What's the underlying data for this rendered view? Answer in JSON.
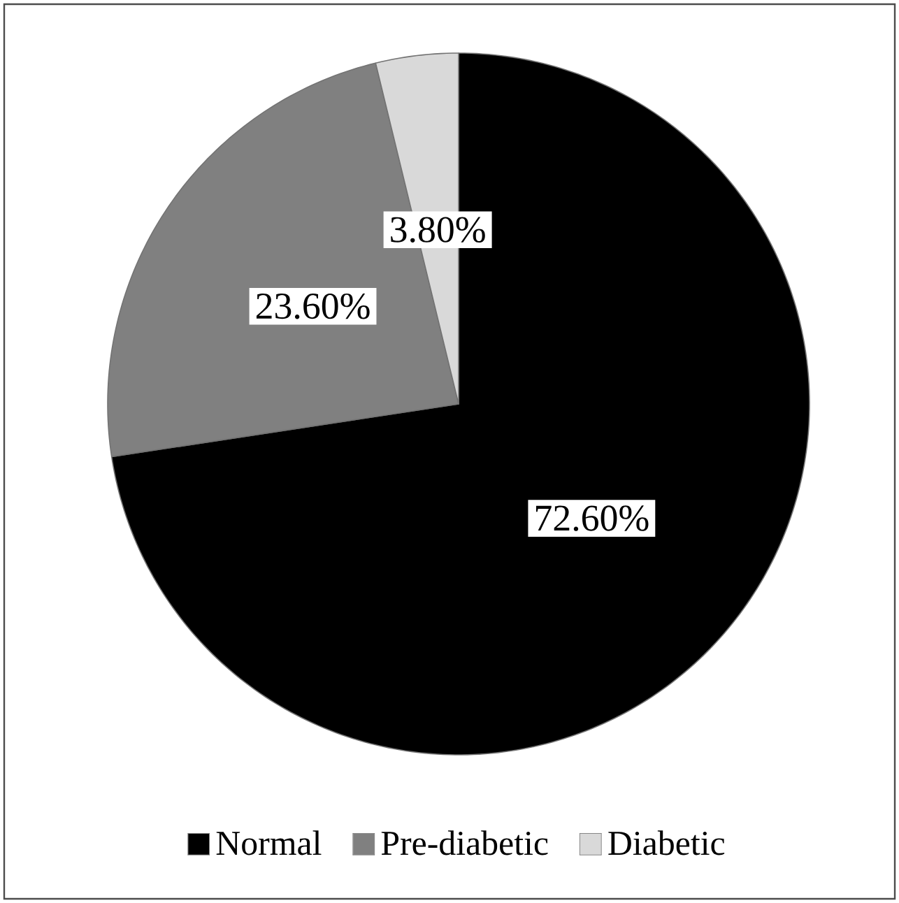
{
  "chart_data": {
    "type": "pie",
    "categories": [
      "Normal",
      "Pre-diabetic",
      "Diabetic"
    ],
    "values": [
      72.6,
      23.6,
      3.8
    ],
    "colors": [
      "#000000",
      "#808080",
      "#d9d9d9"
    ],
    "value_labels": [
      "72.60%",
      "23.60%",
      "3.80%"
    ],
    "legend": "bottom"
  }
}
